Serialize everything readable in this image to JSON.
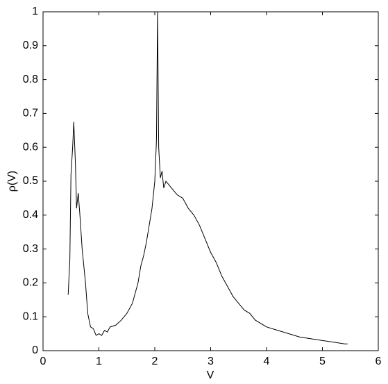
{
  "chart_data": {
    "type": "line",
    "xlabel": "V",
    "ylabel": "ρ(V)",
    "x": [
      0.45,
      0.48,
      0.5,
      0.53,
      0.55,
      0.58,
      0.6,
      0.63,
      0.66,
      0.7,
      0.73,
      0.76,
      0.8,
      0.85,
      0.9,
      0.95,
      1.0,
      1.05,
      1.1,
      1.15,
      1.2,
      1.3,
      1.4,
      1.5,
      1.6,
      1.65,
      1.7,
      1.75,
      1.8,
      1.85,
      1.9,
      1.95,
      2.0,
      2.03,
      2.05,
      2.07,
      2.1,
      2.13,
      2.16,
      2.2,
      2.3,
      2.4,
      2.5,
      2.6,
      2.7,
      2.8,
      2.9,
      3.0,
      3.1,
      3.2,
      3.3,
      3.4,
      3.5,
      3.6,
      3.7,
      3.8,
      3.9,
      4.0,
      4.2,
      4.4,
      4.6,
      4.8,
      5.0,
      5.2,
      5.4,
      5.45
    ],
    "values": [
      0.165,
      0.27,
      0.52,
      0.6,
      0.675,
      0.55,
      0.42,
      0.465,
      0.4,
      0.3,
      0.25,
      0.2,
      0.11,
      0.07,
      0.065,
      0.045,
      0.05,
      0.045,
      0.06,
      0.055,
      0.07,
      0.075,
      0.09,
      0.11,
      0.14,
      0.17,
      0.2,
      0.25,
      0.28,
      0.32,
      0.37,
      0.42,
      0.5,
      0.62,
      1.0,
      0.6,
      0.51,
      0.53,
      0.48,
      0.5,
      0.48,
      0.46,
      0.45,
      0.42,
      0.4,
      0.37,
      0.33,
      0.29,
      0.26,
      0.22,
      0.19,
      0.16,
      0.14,
      0.12,
      0.11,
      0.09,
      0.08,
      0.07,
      0.06,
      0.05,
      0.04,
      0.035,
      0.03,
      0.025,
      0.02,
      0.02
    ],
    "color": "#000000",
    "xlim": [
      0,
      6
    ],
    "xticks": [
      0,
      1,
      2,
      3,
      4,
      5,
      6
    ],
    "ylim": [
      0,
      1
    ],
    "yticks": [
      0,
      0.1,
      0.2,
      0.3,
      0.4,
      0.5,
      0.6,
      0.7,
      0.8,
      0.9,
      1
    ]
  }
}
